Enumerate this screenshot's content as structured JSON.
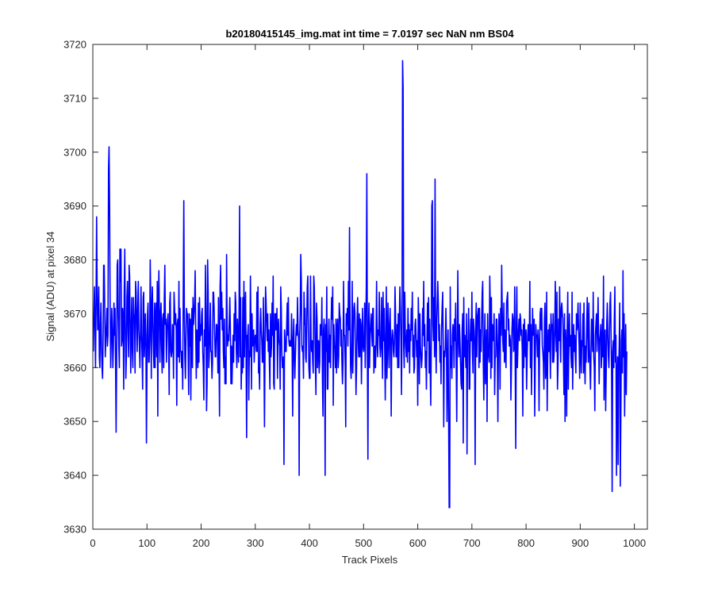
{
  "chart_data": {
    "type": "line",
    "title": "b20180415145_img.mat int time = 7.0197 sec  NaN nm BS04",
    "xlabel": "Track Pixels",
    "ylabel": "Signal (ADU) at pixel 34",
    "xlim": [
      0,
      1024
    ],
    "ylim": [
      3630,
      3720
    ],
    "xticks": [
      0,
      100,
      200,
      300,
      400,
      500,
      600,
      700,
      800,
      900,
      1000
    ],
    "yticks": [
      3630,
      3640,
      3650,
      3660,
      3670,
      3680,
      3690,
      3700,
      3710,
      3720
    ],
    "grid": false,
    "legend": "none",
    "series": [
      {
        "color": "#0000ff",
        "x_start": 1,
        "x_step": 1,
        "values": [
          3663,
          3670,
          3675,
          3668,
          3660,
          3672,
          3688,
          3674,
          3667,
          3669,
          3675,
          3662,
          3660,
          3668,
          3672,
          3664,
          3660,
          3658,
          3666,
          3679,
          3679,
          3671,
          3662,
          3665,
          3668,
          3671,
          3664,
          3666,
          3697,
          3701,
          3690,
          3671,
          3660,
          3665,
          3671,
          3667,
          3660,
          3664,
          3672,
          3666,
          3671,
          3661,
          3648,
          3662,
          3679,
          3680,
          3670,
          3664,
          3660,
          3682,
          3676,
          3682,
          3664,
          3665,
          3671,
          3669,
          3656,
          3674,
          3682,
          3667,
          3658,
          3662,
          3673,
          3676,
          3667,
          3662,
          3679,
          3677,
          3666,
          3659,
          3668,
          3673,
          3663,
          3660,
          3673,
          3670,
          3669,
          3659,
          3676,
          3674,
          3668,
          3663,
          3671,
          3676,
          3667,
          3664,
          3660,
          3667,
          3675,
          3666,
          3662,
          3656,
          3673,
          3674,
          3662,
          3665,
          3670,
          3666,
          3646,
          3660,
          3670,
          3672,
          3661,
          3661,
          3665,
          3680,
          3672,
          3658,
          3671,
          3675,
          3668,
          3663,
          3660,
          3672,
          3660,
          3669,
          3672,
          3662,
          3676,
          3651,
          3672,
          3678,
          3669,
          3661,
          3670,
          3672,
          3664,
          3659,
          3669,
          3670,
          3660,
          3673,
          3679,
          3668,
          3669,
          3661,
          3667,
          3669,
          3670,
          3664,
          3655,
          3672,
          3674,
          3663,
          3662,
          3663,
          3668,
          3666,
          3658,
          3674,
          3671,
          3668,
          3670,
          3667,
          3653,
          3668,
          3669,
          3662,
          3676,
          3661,
          3671,
          3663,
          3663,
          3660,
          3663,
          3656,
          3674,
          3691,
          3671,
          3662,
          3658,
          3665,
          3671,
          3670,
          3670,
          3663,
          3655,
          3670,
          3664,
          3669,
          3654,
          3667,
          3671,
          3660,
          3673,
          3668,
          3670,
          3672,
          3678,
          3667,
          3658,
          3667,
          3664,
          3660,
          3672,
          3661,
          3673,
          3665,
          3668,
          3666,
          3670,
          3671,
          3663,
          3660,
          3654,
          3667,
          3664,
          3679,
          3670,
          3652,
          3657,
          3680,
          3674,
          3660,
          3662,
          3667,
          3672,
          3663,
          3663,
          3658,
          3661,
          3674,
          3674,
          3671,
          3666,
          3662,
          3662,
          3668,
          3668,
          3665,
          3659,
          3673,
          3662,
          3651,
          3675,
          3679,
          3669,
          3674,
          3667,
          3671,
          3663,
          3660,
          3669,
          3657,
          3662,
          3657,
          3681,
          3668,
          3664,
          3666,
          3665,
          3669,
          3673,
          3667,
          3657,
          3664,
          3657,
          3662,
          3666,
          3661,
          3670,
          3665,
          3674,
          3672,
          3663,
          3660,
          3669,
          3666,
          3661,
          3670,
          3690,
          3662,
          3673,
          3656,
          3662,
          3659,
          3673,
          3660,
          3676,
          3662,
          3671,
          3674,
          3663,
          3647,
          3666,
          3666,
          3668,
          3654,
          3663,
          3662,
          3677,
          3668,
          3656,
          3670,
          3664,
          3666,
          3667,
          3661,
          3665,
          3666,
          3665,
          3663,
          3674,
          3663,
          3675,
          3659,
          3660,
          3656,
          3668,
          3671,
          3667,
          3665,
          3661,
          3661,
          3673,
          3662,
          3649,
          3663,
          3675,
          3672,
          3668,
          3665,
          3670,
          3663,
          3667,
          3661,
          3656,
          3670,
          3662,
          3664,
          3672,
          3666,
          3677,
          3657,
          3656,
          3670,
          3667,
          3670,
          3667,
          3671,
          3658,
          3667,
          3669,
          3665,
          3664,
          3656,
          3675,
          3671,
          3663,
          3660,
          3660,
          3662,
          3642,
          3667,
          3665,
          3663,
          3663,
          3668,
          3672,
          3666,
          3673,
          3665,
          3664,
          3665,
          3664,
          3664,
          3670,
          3664,
          3651,
          3665,
          3669,
          3662,
          3658,
          3662,
          3666,
          3668,
          3666,
          3673,
          3667,
          3665,
          3640,
          3666,
          3670,
          3681,
          3676,
          3664,
          3663,
          3664,
          3658,
          3674,
          3668,
          3671,
          3662,
          3661,
          3668,
          3675,
          3677,
          3668,
          3660,
          3658,
          3658,
          3677,
          3665,
          3663,
          3665,
          3661,
          3659,
          3677,
          3675,
          3668,
          3660,
          3655,
          3672,
          3669,
          3660,
          3665,
          3665,
          3659,
          3661,
          3668,
          3667,
          3666,
          3673,
          3658,
          3651,
          3667,
          3669,
          3664,
          3640,
          3668,
          3663,
          3675,
          3656,
          3656,
          3665,
          3669,
          3661,
          3666,
          3660,
          3668,
          3673,
          3669,
          3675,
          3653,
          3668,
          3664,
          3664,
          3660,
          3669,
          3659,
          3667,
          3669,
          3660,
          3662,
          3672,
          3670,
          3669,
          3664,
          3667,
          3661,
          3657,
          3661,
          3676,
          3666,
          3666,
          3661,
          3649,
          3670,
          3668,
          3671,
          3664,
          3676,
          3667,
          3686,
          3669,
          3660,
          3658,
          3663,
          3676,
          3659,
          3664,
          3671,
          3672,
          3670,
          3663,
          3655,
          3660,
          3669,
          3673,
          3665,
          3662,
          3670,
          3662,
          3669,
          3668,
          3657,
          3665,
          3671,
          3664,
          3663,
          3665,
          3672,
          3660,
          3667,
          3675,
          3696,
          3662,
          3643,
          3668,
          3672,
          3660,
          3665,
          3668,
          3670,
          3667,
          3664,
          3671,
          3671,
          3659,
          3661,
          3664,
          3660,
          3665,
          3676,
          3665,
          3662,
          3667,
          3666,
          3674,
          3664,
          3662,
          3664,
          3673,
          3665,
          3658,
          3674,
          3665,
          3671,
          3663,
          3654,
          3665,
          3675,
          3658,
          3662,
          3672,
          3667,
          3660,
          3667,
          3671,
          3664,
          3651,
          3665,
          3667,
          3666,
          3663,
          3662,
          3665,
          3675,
          3670,
          3662,
          3662,
          3668,
          3660,
          3670,
          3660,
          3669,
          3675,
          3671,
          3665,
          3655,
          3668,
          3717,
          3712,
          3664,
          3660,
          3674,
          3667,
          3664,
          3662,
          3667,
          3661,
          3671,
          3663,
          3668,
          3659,
          3667,
          3665,
          3671,
          3667,
          3674,
          3662,
          3666,
          3659,
          3660,
          3668,
          3669,
          3666,
          3662,
          3665,
          3653,
          3673,
          3668,
          3657,
          3670,
          3664,
          3662,
          3660,
          3662,
          3671,
          3666,
          3676,
          3664,
          3668,
          3660,
          3663,
          3656,
          3665,
          3672,
          3665,
          3673,
          3659,
          3669,
          3660,
          3653,
          3664,
          3690,
          3691,
          3668,
          3665,
          3673,
          3662,
          3695,
          3667,
          3659,
          3668,
          3672,
          3676,
          3672,
          3665,
          3668,
          3661,
          3664,
          3657,
          3667,
          3671,
          3674,
          3665,
          3649,
          3663,
          3662,
          3664,
          3671,
          3665,
          3650,
          3660,
          3667,
          3651,
          3634,
          3634,
          3675,
          3660,
          3664,
          3658,
          3666,
          3668,
          3667,
          3660,
          3669,
          3665,
          3672,
          3661,
          3650,
          3664,
          3678,
          3666,
          3662,
          3668,
          3665,
          3661,
          3657,
          3656,
          3667,
          3670,
          3646,
          3673,
          3662,
          3666,
          3663,
          3660,
          3670,
          3644,
          3665,
          3665,
          3671,
          3656,
          3656,
          3666,
          3669,
          3665,
          3674,
          3663,
          3659,
          3669,
          3667,
          3664,
          3642,
          3667,
          3672,
          3662,
          3669,
          3670,
          3671,
          3660,
          3671,
          3661,
          3667,
          3663,
          3669,
          3674,
          3676,
          3661,
          3654,
          3664,
          3670,
          3657,
          3662,
          3667,
          3650,
          3670,
          3663,
          3662,
          3661,
          3677,
          3671,
          3658,
          3673,
          3660,
          3668,
          3666,
          3665,
          3670,
          3655,
          3662,
          3662,
          3669,
          3669,
          3662,
          3650,
          3664,
          3670,
          3667,
          3656,
          3671,
          3666,
          3679,
          3671,
          3665,
          3663,
          3672,
          3661,
          3667,
          3663,
          3660,
          3672,
          3673,
          3674,
          3667,
          3669,
          3664,
          3666,
          3665,
          3654,
          3660,
          3667,
          3670,
          3669,
          3663,
          3664,
          3675,
          3660,
          3645,
          3668,
          3675,
          3660,
          3664,
          3667,
          3669,
          3665,
          3670,
          3669,
          3666,
          3667,
          3663,
          3651,
          3668,
          3660,
          3669,
          3664,
          3662,
          3667,
          3656,
          3662,
          3666,
          3668,
          3665,
          3665,
          3676,
          3660,
          3668,
          3655,
          3662,
          3671,
          3666,
          3667,
          3669,
          3651,
          3661,
          3668,
          3666,
          3666,
          3662,
          3667,
          3664,
          3652,
          3665,
          3670,
          3671,
          3667,
          3671,
          3664,
          3663,
          3661,
          3656,
          3669,
          3672,
          3658,
          3660,
          3674,
          3652,
          3662,
          3667,
          3663,
          3668,
          3665,
          3658,
          3670,
          3667,
          3668,
          3661,
          3670,
          3661,
          3663,
          3667,
          3676,
          3667,
          3663,
          3674,
          3656,
          3660,
          3669,
          3665,
          3675,
          3667,
          3661,
          3671,
          3672,
          3670,
          3669,
          3662,
          3655,
          3670,
          3650,
          3667,
          3664,
          3651,
          3667,
          3674,
          3656,
          3663,
          3670,
          3664,
          3666,
          3662,
          3660,
          3674,
          3656,
          3663,
          3668,
          3663,
          3666,
          3662,
          3659,
          3670,
          3667,
          3668,
          3672,
          3667,
          3664,
          3658,
          3672,
          3663,
          3659,
          3665,
          3664,
          3670,
          3659,
          3672,
          3662,
          3657,
          3664,
          3661,
          3668,
          3673,
          3666,
          3661,
          3672,
          3664,
          3660,
          3656,
          3663,
          3669,
          3667,
          3663,
          3674,
          3662,
          3660,
          3652,
          3666,
          3668,
          3670,
          3663,
          3667,
          3673,
          3666,
          3657,
          3665,
          3666,
          3668,
          3660,
          3663,
          3669,
          3662,
          3677,
          3654,
          3663,
          3667,
          3652,
          3659,
          3668,
          3672,
          3666,
          3662,
          3660,
          3667,
          3672,
          3674,
          3666,
          3659,
          3637,
          3663,
          3665,
          3660,
          3669,
          3675,
          3661,
          3666,
          3640,
          3658,
          3662,
          3642,
          3660,
          3664,
          3672,
          3638,
          3650,
          3665,
          3667,
          3659,
          3678,
          3662,
          3670,
          3651,
          3661,
          3668,
          3655,
          3663
        ]
      }
    ]
  }
}
